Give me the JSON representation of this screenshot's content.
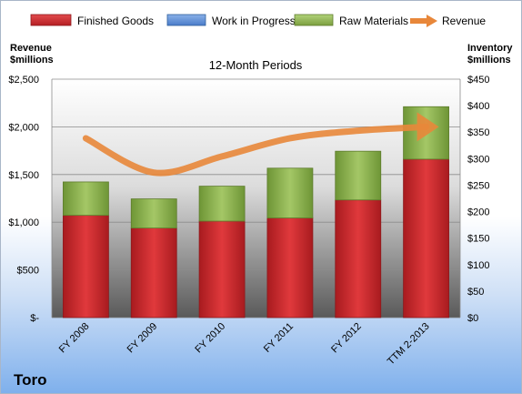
{
  "chart_data": {
    "type": "bar",
    "stacked": true,
    "title": "12-Month Periods",
    "company": "Toro",
    "categories": [
      "FY 2008",
      "FY 2009",
      "FY 2010",
      "FY 2011",
      "FY 2012",
      "TTM 2-2013"
    ],
    "series": [
      {
        "name": "Finished Goods",
        "axis": "right",
        "color": "#c0262a",
        "values": [
          193,
          169,
          182,
          188,
          222,
          299
        ]
      },
      {
        "name": "Work in Progress",
        "axis": "right",
        "color": "#4a7cc9",
        "values": [
          0,
          0,
          0,
          0,
          0,
          0
        ]
      },
      {
        "name": "Raw Materials",
        "axis": "right",
        "color": "#8cb04a",
        "values": [
          63,
          55,
          66,
          94,
          92,
          99
        ]
      },
      {
        "name": "Revenue",
        "axis": "left",
        "type": "line",
        "color": "#e8873a",
        "values": [
          1880,
          1520,
          1690,
          1880,
          1960,
          2000
        ]
      }
    ],
    "y_left": {
      "label": "Revenue $millions",
      "label_lines": [
        "Revenue",
        "$millions"
      ],
      "min": 0,
      "max": 2500,
      "ticks": [
        0,
        500,
        1000,
        1500,
        2000,
        2500
      ],
      "tick_labels": [
        "$-",
        "$500",
        "$1,000",
        "$1,500",
        "$2,000",
        "$2,500"
      ]
    },
    "y_right": {
      "label": "Inventory $millions",
      "label_lines": [
        "Inventory",
        "$millions"
      ],
      "min": 0,
      "max": 450,
      "ticks": [
        0,
        50,
        100,
        150,
        200,
        250,
        300,
        350,
        400,
        450
      ],
      "tick_labels": [
        "$0",
        "$50",
        "$100",
        "$150",
        "$200",
        "$250",
        "$300",
        "$350",
        "$400",
        "$450"
      ]
    },
    "grid": true,
    "legend_position": "top"
  }
}
